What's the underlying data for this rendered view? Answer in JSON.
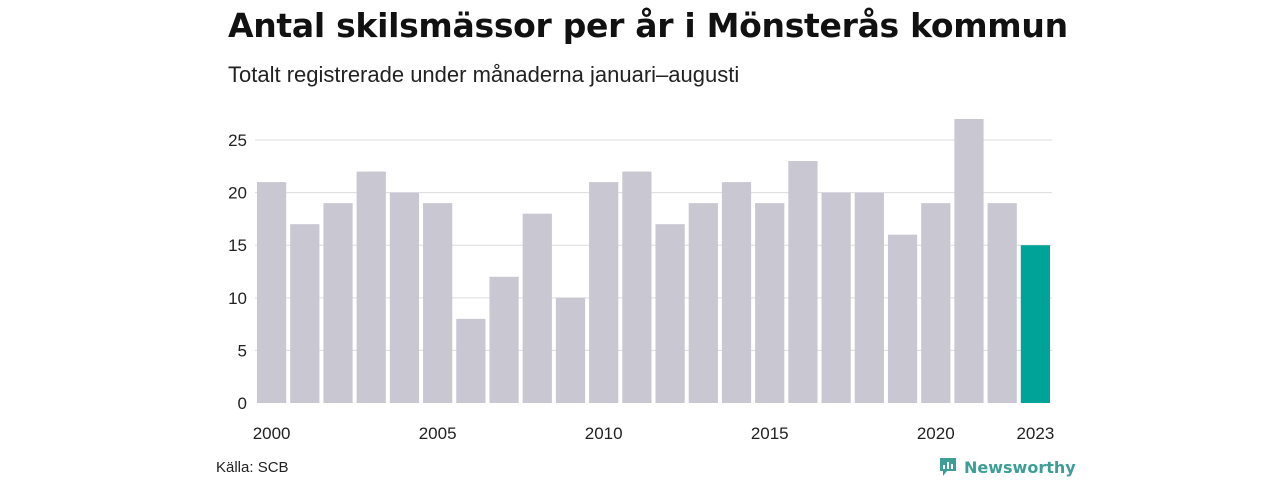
{
  "title": "Antal skilsmässor per år i Mönsterås kommun",
  "subtitle": "Totalt registrerade under månaderna januari–augusti",
  "source": "Källa: SCB",
  "brand": {
    "name": "Newsworthy",
    "icon": "newsworthy-logo-icon",
    "color": "#3d9e95"
  },
  "chart_data": {
    "type": "bar",
    "categories": [
      "2000",
      "2001",
      "2002",
      "2003",
      "2004",
      "2005",
      "2006",
      "2007",
      "2008",
      "2009",
      "2010",
      "2011",
      "2012",
      "2013",
      "2014",
      "2015",
      "2016",
      "2017",
      "2018",
      "2019",
      "2020",
      "2021",
      "2022",
      "2023"
    ],
    "values": [
      21,
      17,
      19,
      22,
      20,
      19,
      8,
      12,
      18,
      10,
      21,
      22,
      17,
      19,
      21,
      19,
      23,
      20,
      20,
      16,
      19,
      27,
      19,
      15
    ],
    "ylim": [
      0,
      27
    ],
    "yticks": [
      0,
      5,
      10,
      15,
      20,
      25
    ],
    "xtick_labels": [
      "2000",
      "2005",
      "2010",
      "2015",
      "2020",
      "2023"
    ],
    "grid": true,
    "colors": {
      "bar": "#c8c7d2",
      "highlight": "#00a398",
      "grid": "#dcdce0"
    },
    "highlight_category": "2023"
  }
}
